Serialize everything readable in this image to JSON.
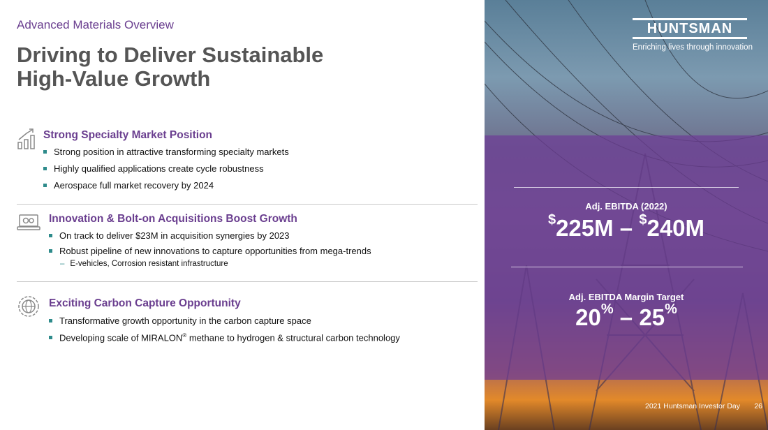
{
  "eyebrow": "Advanced Materials Overview",
  "title_line1": "Driving to Deliver Sustainable",
  "title_line2": "High-Value Growth",
  "sections": [
    {
      "icon": "bar-chart-icon",
      "heading": "Strong Specialty Market Position",
      "bullets": [
        "Strong position in attractive transforming specialty markets",
        "Highly qualified applications create cycle robustness",
        "Aerospace full market recovery by 2024"
      ]
    },
    {
      "icon": "laptop-gears-icon",
      "heading": "Innovation & Bolt-on Acquisitions Boost Growth",
      "bullets": [
        "On track to deliver $23M in acquisition synergies by 2023",
        "Robust pipeline of new innovations to capture opportunities from mega-trends"
      ],
      "sub_bullet": "E-vehicles, Corrosion resistant infrastructure"
    },
    {
      "icon": "globe-gear-icon",
      "heading": "Exciting Carbon Capture Opportunity",
      "bullets": [
        "Transformative growth opportunity in the carbon capture space",
        "Developing scale of MIRALON"
      ],
      "bullet2_reg": "®",
      "bullet2_rest": " methane to hydrogen & structural carbon technology"
    }
  ],
  "brand": {
    "logo": "HUNTSMAN",
    "tagline": "Enriching lives through innovation"
  },
  "kpis": {
    "ebitda_label": "Adj. EBITDA (2022)",
    "ebitda_cur1": "$",
    "ebitda_v1": "225M",
    "ebitda_sep": " – ",
    "ebitda_cur2": "$",
    "ebitda_v2": "240M",
    "margin_label": "Adj. EBITDA Margin Target",
    "margin_v1": "20",
    "margin_pct1": "%",
    "margin_sep": " – ",
    "margin_v2": "25",
    "margin_pct2": "%"
  },
  "footer": {
    "event": "2021 Huntsman Investor Day",
    "page": "26"
  },
  "colors": {
    "purple": "#6a3e8f",
    "teal_bullet": "#2e8b8b"
  }
}
